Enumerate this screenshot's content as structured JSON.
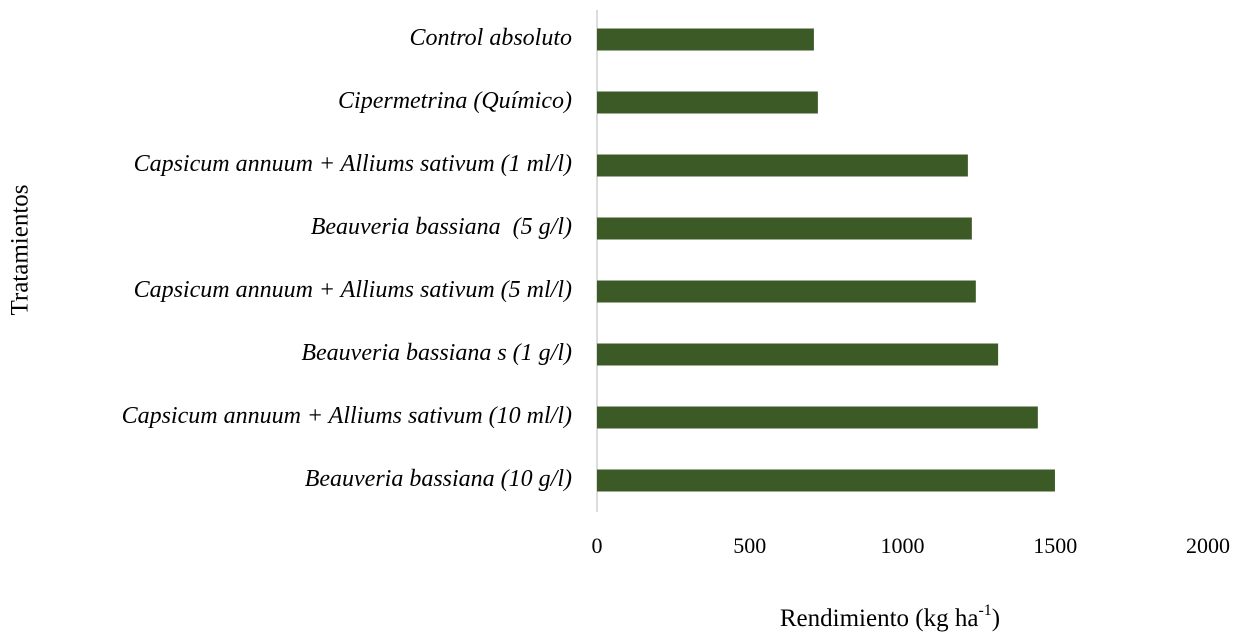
{
  "chart_data": {
    "type": "barh",
    "categories": [
      "Control absoluto",
      "Cipermetrina (Químico)",
      "Capsicum annuum + Alliums sativum (1 ml/l)",
      "Beauveria bassiana  (5 g/l)",
      "Capsicum annuum + Alliums sativum (5 ml/l)",
      "Beauveria bassiana s (1 g/l)",
      "Capsicum annuum + Alliums sativum (10 ml/l)",
      "Beauveria bassiana (10 g/l)"
    ],
    "values": [
      710,
      723,
      1214,
      1227,
      1240,
      1313,
      1443,
      1499
    ],
    "color": "#3c5a26",
    "xlim": [
      0,
      2000
    ],
    "xticks": [
      0,
      500,
      1000,
      1500,
      2000
    ],
    "xlabel": {
      "text": "Rendimiento (kg ha",
      "superscript": "-1",
      "suffix": ")"
    },
    "ylabel": "Tratamientos",
    "grid": false
  }
}
